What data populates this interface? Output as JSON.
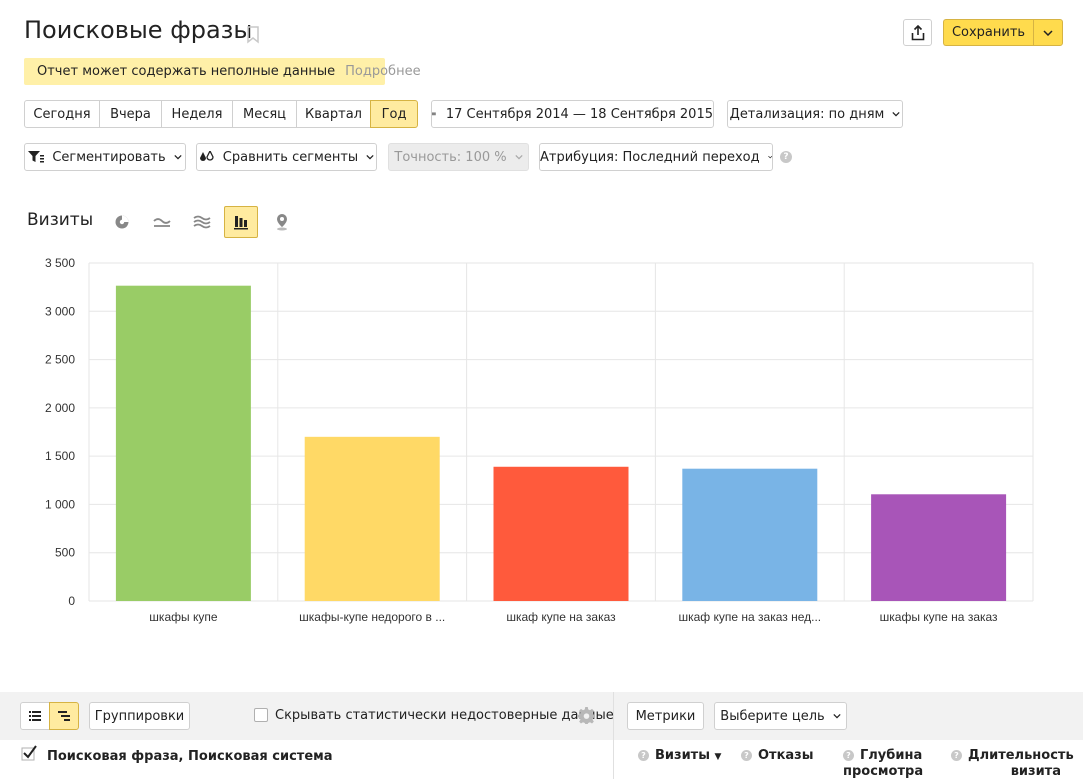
{
  "header": {
    "title": "Поисковые фразы",
    "save_label": "Сохранить"
  },
  "warning": {
    "text": "Отчет может содержать неполные данные",
    "more_link": "Подробнее"
  },
  "periods": [
    {
      "label": "Сегодня",
      "active": false
    },
    {
      "label": "Вчера",
      "active": false
    },
    {
      "label": "Неделя",
      "active": false
    },
    {
      "label": "Месяц",
      "active": false
    },
    {
      "label": "Квартал",
      "active": false
    },
    {
      "label": "Год",
      "active": true
    }
  ],
  "date_range": "17 Сентября 2014 — 18 Сентября 2015",
  "detail_label": "Детализация: по дням",
  "filters": {
    "segment_label": "Сегментировать",
    "compare_label": "Сравнить сегменты",
    "accuracy_label": "Точность: 100 %",
    "attribution_label": "Атрибуция: Последний переход"
  },
  "chart_header": {
    "metric_label": "Визиты",
    "view_icons": [
      "pie-chart-icon",
      "line-chart-icon",
      "area-chart-icon",
      "bar-chart-icon",
      "map-pin-icon"
    ],
    "active_view": "bar-chart-icon"
  },
  "chart_data": {
    "type": "bar",
    "categories": [
      "шкафы купе",
      "шкафы-купе недорого в ...",
      "шкаф купе на заказ",
      "шкаф купе на заказ нед...",
      "шкафы купе на заказ"
    ],
    "values": [
      3265,
      1700,
      1390,
      1370,
      1105
    ],
    "colors": [
      "#99cc66",
      "#ffd966",
      "#ff5a3c",
      "#79b4e6",
      "#a855b8"
    ],
    "ylim": [
      0,
      3500
    ],
    "yticks": [
      0,
      500,
      1000,
      1500,
      2000,
      2500,
      3000,
      3500
    ],
    "ytick_labels": [
      "0",
      "500",
      "1 000",
      "1 500",
      "2 000",
      "2 500",
      "3 000",
      "3 500"
    ],
    "grid": true
  },
  "bottom_bar": {
    "groupings_label": "Группировки",
    "hide_label": "Скрывать статистически недостоверные данные",
    "metrics_label": "Метрики",
    "goal_label": "Выберите цель"
  },
  "table": {
    "dimension_label": "Поисковая фраза, Поисковая система",
    "columns": [
      {
        "line1": "Визиты",
        "line2": "",
        "sorted": true
      },
      {
        "line1": "Отказы",
        "line2": ""
      },
      {
        "line1": "Глубина",
        "line2": "просмотра"
      },
      {
        "line1": "Длительность",
        "line2": "визита"
      }
    ]
  }
}
